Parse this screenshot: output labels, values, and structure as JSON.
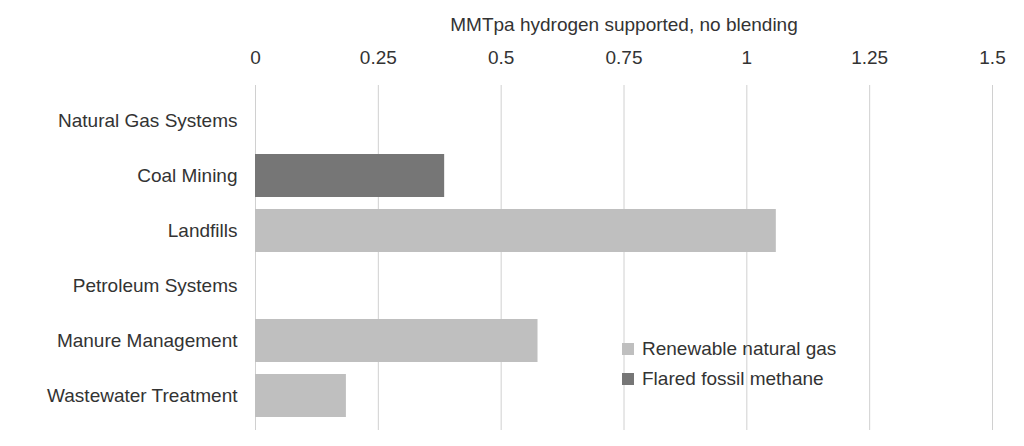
{
  "chart_data": {
    "type": "bar",
    "orientation": "horizontal",
    "xlabel": "MMTpa hydrogen supported, no blending",
    "categories": [
      "Natural Gas Systems",
      "Coal Mining",
      "Landfills",
      "Petroleum Systems",
      "Manure Management",
      "Wastewater Treatment"
    ],
    "series": [
      {
        "name": "Renewable natural gas",
        "color": "#bfbfbf",
        "values": [
          null,
          null,
          1.06,
          null,
          0.575,
          0.185
        ]
      },
      {
        "name": "Flared fossil methane",
        "color": "#767676",
        "values": [
          null,
          0.385,
          null,
          null,
          null,
          null
        ]
      }
    ],
    "xlim": [
      0,
      1.5
    ],
    "xticks": [
      0,
      0.25,
      0.5,
      0.75,
      1,
      1.25,
      1.5
    ],
    "grid": true,
    "legend": "lower right"
  }
}
